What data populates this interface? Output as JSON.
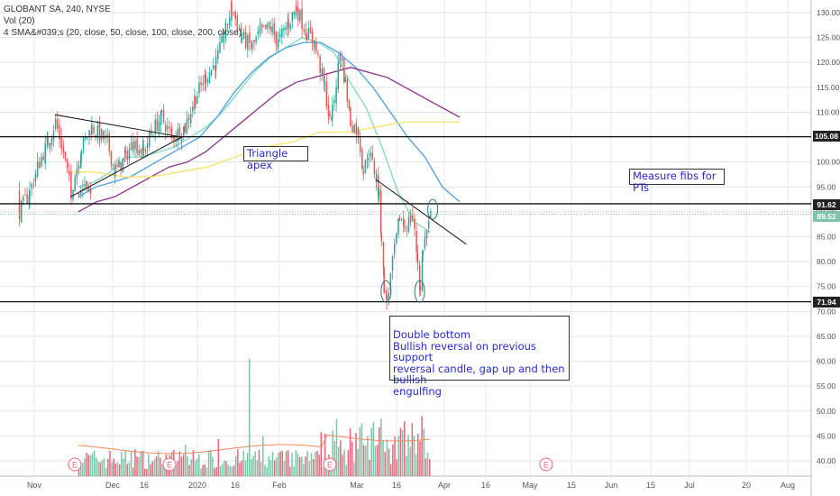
{
  "legend": {
    "symbol_line": "GLOBANT SA, 240, NYSE",
    "volume_line": "Vol (20)",
    "sma_line": "4 SMA&#039;s (20, close, 50, close, 100, close, 200, close)"
  },
  "annotations": {
    "triangle_apex": "Triangle apex",
    "measure_fibs": "Measure fibs for PTs",
    "double_bottom_title": "Double bottom",
    "double_bottom_l1": "Bullish reversal on previous support",
    "double_bottom_l2": "reversal candle, gap up and then bullish",
    "double_bottom_l3": "engulfing"
  },
  "price_tags": {
    "tag_105": "105.08",
    "tag_9162": "91.62",
    "tag_8952": "89.52",
    "tag_7194": "71.94"
  },
  "earnings_marker": "E",
  "chart_data": {
    "type": "candlestick",
    "title": "GLOBANT SA, 240, NYSE",
    "y_axis": {
      "ticks": [
        40.0,
        45.0,
        50.0,
        55.0,
        60.0,
        65.0,
        70.0,
        75.0,
        80.0,
        85.0,
        90.0,
        95.0,
        100.0,
        105.0,
        110.0,
        115.0,
        120.0,
        125.0,
        130.0
      ],
      "tick_labels": [
        "40.00",
        "45.00",
        "50.00",
        "55.00",
        "60.00",
        "65.00",
        "70.00",
        "75.00",
        "80.00",
        "85.00",
        "90.00",
        "95.00",
        "100.00",
        "105.00",
        "110.00",
        "115.00",
        "120.00",
        "125.00",
        "130.00"
      ],
      "range": [
        37.5,
        131.5
      ]
    },
    "x_axis": {
      "tick_labels": [
        "Nov",
        "Dec",
        "16",
        "2020",
        "16",
        "Feb",
        "Mar",
        "16",
        "Apr",
        "16",
        "May",
        "15",
        "Jun",
        "15",
        "Jul",
        "20",
        "Aug"
      ]
    },
    "horizontal_levels": [
      105.08,
      91.62,
      71.94
    ],
    "last_price": 89.52,
    "price_path": [
      {
        "date": "Oct 25",
        "close": 94
      },
      {
        "date": "Oct 28",
        "close": 96
      },
      {
        "date": "Oct 30",
        "close": 92
      },
      {
        "date": "Nov 1",
        "close": 90
      },
      {
        "date": "Nov 5",
        "close": 94
      },
      {
        "date": "Nov 8",
        "close": 99
      },
      {
        "date": "Nov 12",
        "close": 104
      },
      {
        "date": "Nov 15",
        "close": 108
      },
      {
        "date": "Nov 18",
        "close": 102
      },
      {
        "date": "Nov 21",
        "close": 94
      },
      {
        "date": "Nov 25",
        "close": 103
      },
      {
        "date": "Nov 29",
        "close": 107
      },
      {
        "date": "Dec 3",
        "close": 104
      },
      {
        "date": "Dec 6",
        "close": 98
      },
      {
        "date": "Dec 10",
        "close": 101
      },
      {
        "date": "Dec 13",
        "close": 104
      },
      {
        "date": "Dec 17",
        "close": 102
      },
      {
        "date": "Dec 20",
        "close": 106
      },
      {
        "date": "Dec 24",
        "close": 109
      },
      {
        "date": "Dec 28",
        "close": 105
      },
      {
        "date": "Jan 2",
        "close": 107
      },
      {
        "date": "Jan 6",
        "close": 113
      },
      {
        "date": "Jan 10",
        "close": 117
      },
      {
        "date": "Jan 14",
        "close": 120
      },
      {
        "date": "Jan 17",
        "close": 125
      },
      {
        "date": "Jan 20",
        "close": 131
      },
      {
        "date": "Jan 24",
        "close": 125
      },
      {
        "date": "Jan 28",
        "close": 123
      },
      {
        "date": "Jan 31",
        "close": 126
      },
      {
        "date": "Feb 4",
        "close": 127
      },
      {
        "date": "Feb 7",
        "close": 124
      },
      {
        "date": "Feb 11",
        "close": 128
      },
      {
        "date": "Feb 14",
        "close": 131
      },
      {
        "date": "Feb 18",
        "close": 126
      },
      {
        "date": "Feb 21",
        "close": 124
      },
      {
        "date": "Feb 25",
        "close": 115
      },
      {
        "date": "Feb 27",
        "close": 108
      },
      {
        "date": "Feb 28",
        "close": 110
      },
      {
        "date": "Mar 2",
        "close": 122
      },
      {
        "date": "Mar 4",
        "close": 116
      },
      {
        "date": "Mar 6",
        "close": 108
      },
      {
        "date": "Mar 9",
        "close": 106
      },
      {
        "date": "Mar 11",
        "close": 98
      },
      {
        "date": "Mar 13",
        "close": 102
      },
      {
        "date": "Mar 16",
        "close": 97
      },
      {
        "date": "Mar 17",
        "close": 93
      },
      {
        "date": "Mar 18",
        "close": 85
      },
      {
        "date": "Mar 19",
        "close": 75
      },
      {
        "date": "Mar 20",
        "close": 72
      },
      {
        "date": "Mar 23",
        "close": 82
      },
      {
        "date": "Mar 25",
        "close": 89
      },
      {
        "date": "Mar 27",
        "close": 87
      },
      {
        "date": "Mar 30",
        "close": 89
      },
      {
        "date": "Apr 1",
        "close": 80
      },
      {
        "date": "Apr 2",
        "close": 74
      },
      {
        "date": "Apr 3",
        "close": 83
      },
      {
        "date": "Apr 6",
        "close": 89
      }
    ],
    "sma_series": [
      {
        "name": "SMA 20",
        "color": "#7fd8c4",
        "values": [
          95,
          96,
          98,
          101,
          101,
          102,
          103,
          105,
          107,
          110,
          114,
          118,
          121,
          123,
          125,
          124,
          122,
          116,
          111,
          103,
          94,
          88,
          86
        ]
      },
      {
        "name": "SMA 50",
        "color": "#4aa0e0",
        "values": [
          93,
          95,
          96,
          97,
          99,
          101,
          103,
          105,
          109,
          114,
          118,
          121,
          123,
          124,
          124,
          122,
          119,
          115,
          110,
          105,
          101,
          95,
          92
        ]
      },
      {
        "name": "SMA 100",
        "color": "#8b2f8b",
        "values": [
          90,
          92,
          93,
          95,
          97,
          99,
          100,
          102,
          105,
          108,
          111,
          114,
          116,
          117,
          118,
          119,
          118,
          117,
          115,
          113,
          111,
          109
        ]
      },
      {
        "name": "SMA 200",
        "color": "#f5e26a",
        "values": [
          98,
          98,
          97,
          97,
          98,
          99,
          101,
          103,
          104,
          106,
          106,
          107,
          108,
          108,
          108
        ]
      }
    ],
    "trendlines": [
      {
        "name": "triangle-upper",
        "from": {
          "date": "Nov 15",
          "price": 109.5
        },
        "to": {
          "date": "Jan 1",
          "price": 105
        }
      },
      {
        "name": "triangle-lower",
        "from": {
          "date": "Nov 21",
          "price": 93
        },
        "to": {
          "date": "Jan 1",
          "price": 105
        }
      },
      {
        "name": "descending-resistance",
        "from": {
          "date": "Mar 16",
          "price": 96.5
        },
        "to": {
          "date": "Apr 20",
          "price": 83.5
        }
      }
    ],
    "volume_spike": {
      "date": "Jan 27",
      "scaled_price": 60.5
    }
  }
}
